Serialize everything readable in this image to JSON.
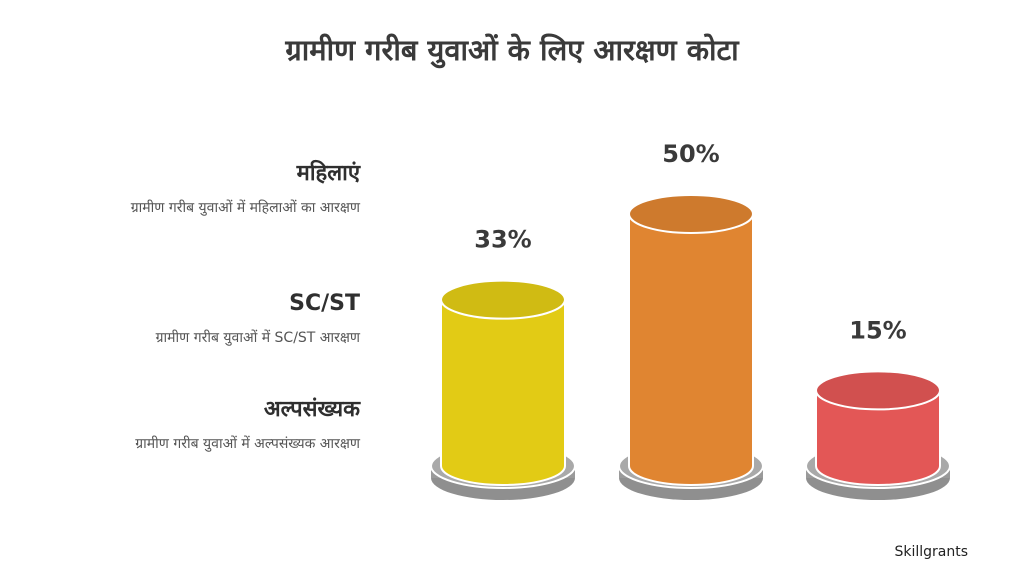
{
  "title": "ग्रामीण गरीब युवाओं के लिए आरक्षण कोटा",
  "brand": "Skillgrants",
  "legend": [
    {
      "heading": "महिलाएं",
      "description": "ग्रामीण गरीब युवाओं में महिलाओं का आरक्षण"
    },
    {
      "heading": "SC/ST",
      "description": "ग्रामीण गरीब युवाओं में SC/ST आरक्षण"
    },
    {
      "heading": "अल्पसंख्यक",
      "description": "ग्रामीण गरीब युवाओं में अल्पसंख्यक आरक्षण"
    }
  ],
  "chart_data": {
    "type": "bar",
    "title": "ग्रामीण गरीब युवाओं के लिए आरक्षण कोटा",
    "categories": [
      "महिलाएं",
      "SC/ST",
      "अल्पसंख्यक"
    ],
    "values": [
      33,
      50,
      15
    ],
    "value_labels": [
      "33%",
      "50%",
      "15%"
    ],
    "unit": "%",
    "colors": [
      "#E2CB15",
      "#E08531",
      "#E35756"
    ],
    "base_color": "#A9A9A9",
    "grid": false,
    "legend": "left"
  }
}
